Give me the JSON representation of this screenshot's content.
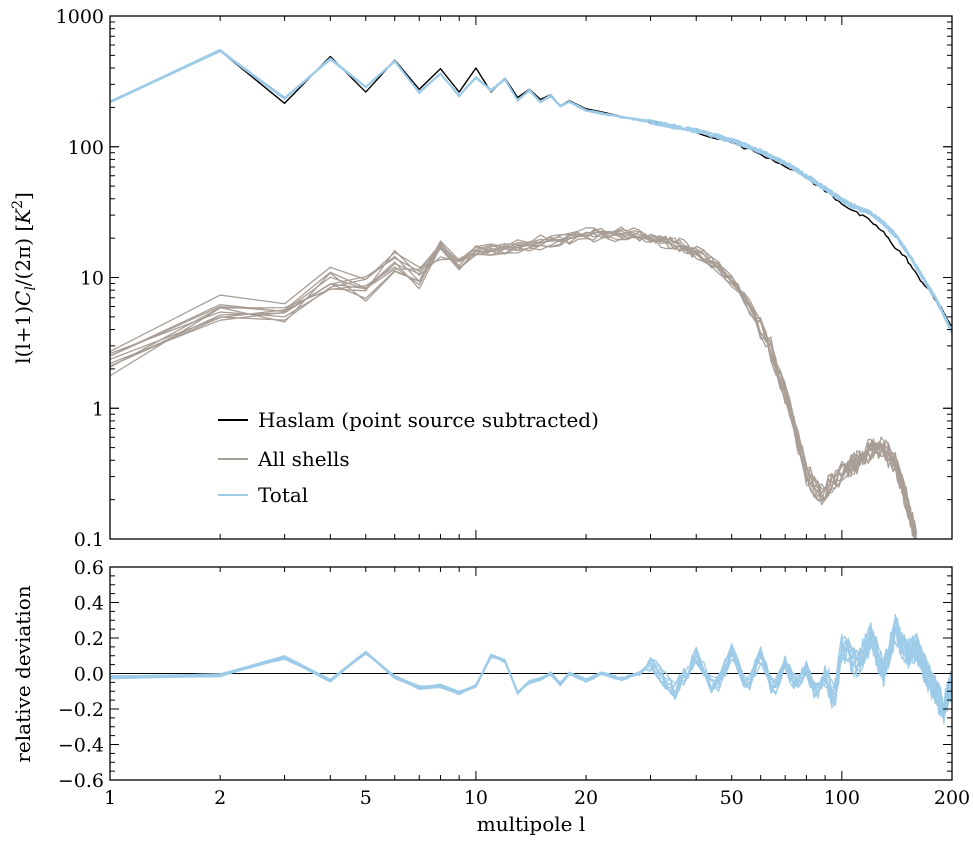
{
  "chart_data": [
    {
      "type": "line",
      "panel": "top",
      "xscale": "log",
      "yscale": "log",
      "xlim": [
        1,
        200
      ],
      "ylim": [
        0.1,
        1000
      ],
      "ylabel": "l(l+1)C_l/(2π) [K²]",
      "ylabel_parts": {
        "pre": "l(l+1)",
        "C": "C",
        "sub": "l",
        "mid": "/(2π) [",
        "K": "K",
        "sup": "2",
        "post": "]"
      },
      "yticks": [
        {
          "v": 0.1,
          "label": "0.1"
        },
        {
          "v": 1,
          "label": "1"
        },
        {
          "v": 10,
          "label": "10"
        },
        {
          "v": 100,
          "label": "100"
        },
        {
          "v": 1000,
          "label": "1000"
        }
      ],
      "legend_position": "lower-left",
      "grid": false,
      "series": [
        {
          "name": "Haslam (point source subtracted)",
          "color": "#000000",
          "ensemble": 1,
          "x": [
            1,
            2,
            3,
            4,
            5,
            6,
            7,
            8,
            9,
            10,
            11,
            12,
            13,
            14,
            15,
            16,
            17,
            18,
            20,
            22,
            25,
            28,
            30,
            35,
            40,
            50,
            60,
            70,
            80,
            90,
            100,
            110,
            120,
            130,
            140,
            150,
            160,
            170,
            180,
            190,
            200
          ],
          "y": [
            220,
            540,
            215,
            490,
            262,
            460,
            275,
            395,
            262,
            400,
            262,
            335,
            238,
            275,
            230,
            250,
            205,
            225,
            195,
            185,
            170,
            160,
            155,
            140,
            130,
            108,
            88,
            72,
            58,
            46,
            37,
            31,
            27,
            22,
            17,
            14,
            10.5,
            8.5,
            6.8,
            5.4,
            4.2
          ]
        },
        {
          "name": "All shells",
          "color": "#a89e96",
          "ensemble": 10,
          "x": [
            1,
            2,
            3,
            4,
            5,
            6,
            7,
            8,
            9,
            10,
            12,
            15,
            20,
            25,
            30,
            35,
            40,
            45,
            50,
            55,
            60,
            65,
            70,
            75,
            80,
            85,
            90,
            95,
            100,
            110,
            120,
            130,
            140,
            150,
            160
          ],
          "y": [
            2.1,
            5.7,
            5.7,
            9.5,
            8.2,
            13,
            10,
            15.5,
            13,
            16,
            16.5,
            18.5,
            21,
            21.5,
            20,
            18,
            15.5,
            12.5,
            9.5,
            6.5,
            4.2,
            2.5,
            1.3,
            0.65,
            0.33,
            0.24,
            0.23,
            0.28,
            0.32,
            0.4,
            0.48,
            0.5,
            0.38,
            0.2,
            0.095
          ]
        },
        {
          "name": "Total",
          "color": "#9dcbe8",
          "ensemble": 10,
          "x": [
            1,
            2,
            3,
            4,
            5,
            6,
            7,
            8,
            9,
            10,
            11,
            12,
            13,
            14,
            15,
            16,
            17,
            18,
            20,
            22,
            25,
            28,
            30,
            35,
            40,
            50,
            60,
            70,
            80,
            90,
            100,
            110,
            120,
            130,
            140,
            150,
            160,
            170,
            180,
            190,
            200
          ],
          "y": [
            220,
            545,
            235,
            470,
            285,
            450,
            260,
            360,
            245,
            340,
            270,
            330,
            225,
            270,
            220,
            245,
            205,
            220,
            190,
            180,
            168,
            160,
            156,
            143,
            133,
            112,
            92,
            75,
            60,
            48,
            39,
            34,
            31,
            26,
            21,
            16,
            12,
            9,
            7,
            5.2,
            3.8
          ]
        }
      ]
    },
    {
      "type": "line",
      "panel": "bottom",
      "xscale": "log",
      "xlim": [
        1,
        200
      ],
      "ylim": [
        -0.6,
        0.6
      ],
      "xlabel": "multipole l",
      "ylabel": "relative deviation",
      "xticks": [
        {
          "v": 1,
          "label": "1"
        },
        {
          "v": 2,
          "label": "2"
        },
        {
          "v": 5,
          "label": "5"
        },
        {
          "v": 10,
          "label": "10"
        },
        {
          "v": 20,
          "label": "20"
        },
        {
          "v": 50,
          "label": "50"
        },
        {
          "v": 100,
          "label": "100"
        },
        {
          "v": 200,
          "label": "200"
        }
      ],
      "yticks": [
        {
          "v": 0.6,
          "label": "0.6"
        },
        {
          "v": 0.4,
          "label": "0.4"
        },
        {
          "v": 0.2,
          "label": "0.2"
        },
        {
          "v": 0.0,
          "label": "0.0"
        },
        {
          "v": -0.2,
          "label": "−0.2"
        },
        {
          "v": -0.4,
          "label": "−0.4"
        },
        {
          "v": -0.6,
          "label": "−0.6"
        }
      ],
      "reference_line": 0.0,
      "series": [
        {
          "name": "Total",
          "color": "#9dcbe8",
          "ensemble": 10,
          "x": [
            1,
            2,
            3,
            4,
            5,
            6,
            7,
            8,
            9,
            10,
            11,
            12,
            13,
            14,
            15,
            16,
            17,
            18,
            20,
            22,
            25,
            28,
            30,
            35,
            40,
            45,
            50,
            55,
            60,
            65,
            70,
            75,
            80,
            85,
            90,
            95,
            100,
            110,
            120,
            130,
            140,
            150,
            160,
            170,
            180,
            190,
            200
          ],
          "y": [
            -0.02,
            -0.01,
            0.09,
            -0.04,
            0.12,
            -0.02,
            -0.08,
            -0.07,
            -0.11,
            -0.07,
            0.1,
            0.07,
            -0.11,
            -0.05,
            -0.03,
            0.0,
            -0.06,
            0.0,
            -0.04,
            0.0,
            -0.03,
            0.0,
            0.06,
            -0.1,
            0.1,
            -0.1,
            0.12,
            -0.08,
            0.1,
            -0.1,
            0.05,
            -0.07,
            0.02,
            -0.12,
            0.0,
            -0.15,
            0.15,
            0.05,
            0.2,
            0.0,
            0.25,
            0.1,
            0.15,
            0.0,
            -0.1,
            -0.2,
            -0.05
          ]
        }
      ]
    }
  ]
}
